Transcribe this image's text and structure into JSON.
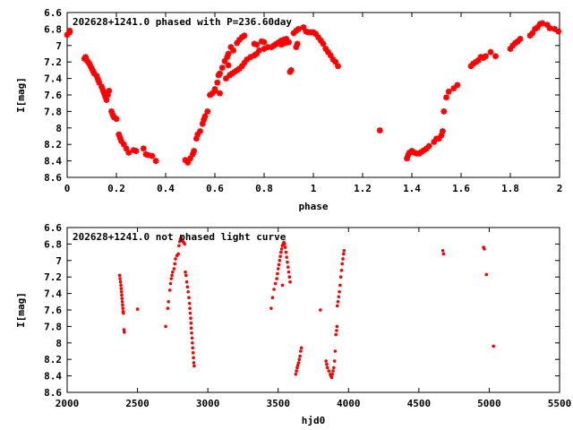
{
  "colors": {
    "points": "#ff0000",
    "axes": "#000000",
    "background": "#ffffff"
  },
  "chart_data": [
    {
      "type": "scatter",
      "title": "202628+1241.0 phased with P=236.60day",
      "xlabel": "phase",
      "ylabel": "I[mag]",
      "xlim": [
        0,
        2
      ],
      "ylim": [
        6.6,
        8.6
      ],
      "y_inverted": true,
      "grid": false,
      "marker": "star",
      "x_ticks": [
        {
          "value": 0,
          "label": "0"
        },
        {
          "value": 0.2,
          "label": "0.2"
        },
        {
          "value": 0.4,
          "label": "0.4"
        },
        {
          "value": 0.6,
          "label": "0.6"
        },
        {
          "value": 0.8,
          "label": "0.8"
        },
        {
          "value": 1,
          "label": "1"
        },
        {
          "value": 1.2,
          "label": "1.2"
        },
        {
          "value": 1.4,
          "label": "1.4"
        },
        {
          "value": 1.6,
          "label": "1.6"
        },
        {
          "value": 1.8,
          "label": "1.8"
        },
        {
          "value": 2,
          "label": "2"
        }
      ],
      "y_ticks": [
        {
          "value": 6.6,
          "label": "6.6"
        },
        {
          "value": 6.8,
          "label": "6.8"
        },
        {
          "value": 7,
          "label": "7"
        },
        {
          "value": 7.2,
          "label": "7.2"
        },
        {
          "value": 7.4,
          "label": "7.4"
        },
        {
          "value": 7.6,
          "label": "7.6"
        },
        {
          "value": 7.8,
          "label": "7.8"
        },
        {
          "value": 8,
          "label": "8"
        },
        {
          "value": 8.2,
          "label": "8.2"
        },
        {
          "value": 8.4,
          "label": "8.4"
        },
        {
          "value": 8.6,
          "label": "8.6"
        }
      ],
      "points": [
        [
          0.0,
          6.87
        ],
        [
          0.01,
          6.82
        ],
        [
          0.01,
          6.84
        ],
        [
          0.07,
          7.16
        ],
        [
          0.075,
          7.14
        ],
        [
          0.08,
          7.18
        ],
        [
          0.085,
          7.2
        ],
        [
          0.09,
          7.22
        ],
        [
          0.095,
          7.25
        ],
        [
          0.1,
          7.28
        ],
        [
          0.105,
          7.31
        ],
        [
          0.11,
          7.34
        ],
        [
          0.12,
          7.37
        ],
        [
          0.125,
          7.41
        ],
        [
          0.13,
          7.45
        ],
        [
          0.14,
          7.5
        ],
        [
          0.145,
          7.54
        ],
        [
          0.15,
          7.58
        ],
        [
          0.155,
          7.62
        ],
        [
          0.16,
          7.66
        ],
        [
          0.165,
          7.6
        ],
        [
          0.17,
          7.55
        ],
        [
          0.18,
          7.8
        ],
        [
          0.185,
          7.84
        ],
        [
          0.19,
          7.87
        ],
        [
          0.2,
          7.89
        ],
        [
          0.21,
          8.08
        ],
        [
          0.215,
          8.12
        ],
        [
          0.22,
          8.16
        ],
        [
          0.23,
          8.2
        ],
        [
          0.24,
          8.25
        ],
        [
          0.25,
          8.3
        ],
        [
          0.27,
          8.27
        ],
        [
          0.28,
          8.28
        ],
        [
          0.31,
          8.25
        ],
        [
          0.32,
          8.32
        ],
        [
          0.33,
          8.33
        ],
        [
          0.345,
          8.34
        ],
        [
          0.36,
          8.4
        ],
        [
          0.48,
          8.39
        ],
        [
          0.49,
          8.42
        ],
        [
          0.5,
          8.37
        ],
        [
          0.51,
          8.32
        ],
        [
          0.515,
          8.28
        ],
        [
          0.525,
          8.13
        ],
        [
          0.53,
          8.08
        ],
        [
          0.54,
          8.04
        ],
        [
          0.55,
          7.95
        ],
        [
          0.555,
          7.9
        ],
        [
          0.56,
          7.86
        ],
        [
          0.57,
          7.8
        ],
        [
          0.58,
          7.6
        ],
        [
          0.59,
          7.58
        ],
        [
          0.6,
          7.53
        ],
        [
          0.61,
          7.45
        ],
        [
          0.615,
          7.36
        ],
        [
          0.62,
          7.34
        ],
        [
          0.63,
          7.27
        ],
        [
          0.64,
          7.19
        ],
        [
          0.65,
          7.14
        ],
        [
          0.655,
          7.1
        ],
        [
          0.66,
          7.36
        ],
        [
          0.67,
          7.34
        ],
        [
          0.68,
          7.32
        ],
        [
          0.69,
          7.3
        ],
        [
          0.7,
          7.28
        ],
        [
          0.71,
          7.25
        ],
        [
          0.72,
          7.21
        ],
        [
          0.73,
          7.17
        ],
        [
          0.745,
          7.14
        ],
        [
          0.76,
          7.12
        ],
        [
          0.77,
          7.1
        ],
        [
          0.78,
          7.06
        ],
        [
          0.8,
          7.04
        ],
        [
          0.83,
          7.02
        ],
        [
          0.84,
          7.0
        ],
        [
          0.85,
          6.98
        ],
        [
          0.86,
          6.96
        ],
        [
          0.87,
          6.94
        ],
        [
          0.88,
          6.93
        ],
        [
          0.89,
          6.92
        ],
        [
          0.905,
          7.32
        ],
        [
          0.91,
          7.3
        ],
        [
          0.92,
          6.85
        ],
        [
          0.93,
          6.82
        ],
        [
          0.94,
          6.8
        ],
        [
          0.96,
          6.78
        ],
        [
          0.97,
          6.83
        ],
        [
          0.98,
          6.84
        ],
        [
          0.99,
          6.84
        ],
        [
          1.0,
          6.84
        ],
        [
          1.01,
          6.86
        ],
        [
          1.02,
          6.9
        ],
        [
          1.03,
          6.94
        ],
        [
          1.04,
          6.98
        ],
        [
          1.05,
          7.04
        ],
        [
          1.06,
          7.08
        ],
        [
          1.07,
          7.12
        ],
        [
          1.08,
          7.17
        ],
        [
          1.09,
          7.2
        ],
        [
          1.1,
          7.25
        ],
        [
          0.6,
          7.55
        ],
        [
          0.62,
          7.58
        ],
        [
          0.645,
          7.4
        ],
        [
          0.655,
          7.24
        ],
        [
          0.665,
          7.02
        ],
        [
          0.675,
          7.06
        ],
        [
          0.69,
          6.97
        ],
        [
          0.7,
          6.93
        ],
        [
          0.71,
          6.9
        ],
        [
          0.72,
          6.88
        ],
        [
          0.76,
          6.98
        ],
        [
          0.77,
          6.99
        ],
        [
          0.79,
          6.95
        ],
        [
          0.8,
          6.96
        ],
        [
          0.815,
          7.02
        ],
        [
          0.87,
          6.99
        ],
        [
          0.885,
          6.97
        ],
        [
          0.9,
          6.96
        ],
        [
          0.93,
          7.02
        ],
        [
          0.935,
          6.98
        ],
        [
          1.27,
          8.03
        ],
        [
          1.38,
          8.37
        ],
        [
          1.385,
          8.33
        ],
        [
          1.39,
          8.3
        ],
        [
          1.4,
          8.28
        ],
        [
          1.41,
          8.3
        ],
        [
          1.42,
          8.31
        ],
        [
          1.43,
          8.31
        ],
        [
          1.44,
          8.29
        ],
        [
          1.45,
          8.27
        ],
        [
          1.46,
          8.25
        ],
        [
          1.47,
          8.22
        ],
        [
          1.49,
          8.17
        ],
        [
          1.5,
          8.13
        ],
        [
          1.51,
          8.13
        ],
        [
          1.52,
          8.09
        ],
        [
          1.525,
          8.04
        ],
        [
          1.53,
          7.8
        ],
        [
          1.54,
          7.63
        ],
        [
          1.55,
          7.56
        ],
        [
          1.57,
          7.52
        ],
        [
          1.585,
          7.48
        ],
        [
          1.64,
          7.25
        ],
        [
          1.65,
          7.22
        ],
        [
          1.66,
          7.2
        ],
        [
          1.67,
          7.18
        ],
        [
          1.68,
          7.14
        ],
        [
          1.69,
          7.15
        ],
        [
          1.7,
          7.13
        ],
        [
          1.72,
          7.08
        ],
        [
          1.74,
          7.13
        ],
        [
          1.8,
          7.04
        ],
        [
          1.81,
          7.0
        ],
        [
          1.82,
          6.97
        ],
        [
          1.83,
          6.95
        ],
        [
          1.84,
          6.92
        ],
        [
          1.88,
          6.88
        ],
        [
          1.89,
          6.85
        ],
        [
          1.9,
          6.8
        ],
        [
          1.91,
          6.78
        ],
        [
          1.92,
          6.74
        ],
        [
          1.93,
          6.73
        ],
        [
          1.95,
          6.75
        ],
        [
          1.96,
          6.79
        ],
        [
          1.98,
          6.8
        ],
        [
          1.995,
          6.83
        ]
      ]
    },
    {
      "type": "scatter",
      "title": "202628+1241.0 not phased light curve",
      "xlabel": "hjd0",
      "ylabel": "I[mag]",
      "xlim": [
        2000,
        5500
      ],
      "ylim": [
        6.6,
        8.6
      ],
      "y_inverted": true,
      "grid": false,
      "marker": "dot",
      "x_ticks": [
        {
          "value": 2000,
          "label": "2000"
        },
        {
          "value": 2500,
          "label": "2500"
        },
        {
          "value": 3000,
          "label": "3000"
        },
        {
          "value": 3500,
          "label": "3500"
        },
        {
          "value": 4000,
          "label": "4000"
        },
        {
          "value": 4500,
          "label": "4500"
        },
        {
          "value": 5000,
          "label": "5000"
        },
        {
          "value": 5500,
          "label": "5500"
        }
      ],
      "y_ticks": [
        {
          "value": 6.6,
          "label": "6.6"
        },
        {
          "value": 6.8,
          "label": "6.8"
        },
        {
          "value": 7,
          "label": "7"
        },
        {
          "value": 7.2,
          "label": "7.2"
        },
        {
          "value": 7.4,
          "label": "7.4"
        },
        {
          "value": 7.6,
          "label": "7.6"
        },
        {
          "value": 7.8,
          "label": "7.8"
        },
        {
          "value": 8,
          "label": "8"
        },
        {
          "value": 8.2,
          "label": "8.2"
        },
        {
          "value": 8.4,
          "label": "8.4"
        },
        {
          "value": 8.6,
          "label": "8.6"
        }
      ],
      "points": [
        [
          2373,
          7.18
        ],
        [
          2376,
          7.22
        ],
        [
          2379,
          7.26
        ],
        [
          2382,
          7.3
        ],
        [
          2384,
          7.34
        ],
        [
          2386,
          7.38
        ],
        [
          2388,
          7.42
        ],
        [
          2390,
          7.46
        ],
        [
          2392,
          7.5
        ],
        [
          2394,
          7.54
        ],
        [
          2396,
          7.58
        ],
        [
          2398,
          7.62
        ],
        [
          2400,
          7.64
        ],
        [
          2404,
          7.84
        ],
        [
          2406,
          7.87
        ],
        [
          2500,
          7.59
        ],
        [
          2700,
          7.8
        ],
        [
          2715,
          7.58
        ],
        [
          2720,
          7.5
        ],
        [
          2730,
          7.36
        ],
        [
          2735,
          7.28
        ],
        [
          2740,
          7.22
        ],
        [
          2745,
          7.18
        ],
        [
          2750,
          7.14
        ],
        [
          2760,
          7.1
        ],
        [
          2765,
          7.04
        ],
        [
          2770,
          6.98
        ],
        [
          2780,
          6.94
        ],
        [
          2790,
          6.92
        ],
        [
          2795,
          6.82
        ],
        [
          2800,
          6.77
        ],
        [
          2805,
          6.74
        ],
        [
          2810,
          6.72
        ],
        [
          2820,
          6.76
        ],
        [
          2828,
          6.78
        ],
        [
          2835,
          6.8
        ],
        [
          2840,
          7.14
        ],
        [
          2845,
          7.18
        ],
        [
          2850,
          7.26
        ],
        [
          2855,
          7.32
        ],
        [
          2860,
          7.38
        ],
        [
          2865,
          7.45
        ],
        [
          2870,
          7.52
        ],
        [
          2872,
          7.58
        ],
        [
          2875,
          7.64
        ],
        [
          2878,
          7.7
        ],
        [
          2880,
          7.76
        ],
        [
          2882,
          7.82
        ],
        [
          2885,
          7.88
        ],
        [
          2888,
          7.94
        ],
        [
          2890,
          8.0
        ],
        [
          2892,
          8.06
        ],
        [
          2895,
          8.12
        ],
        [
          2898,
          8.18
        ],
        [
          2900,
          8.24
        ],
        [
          2903,
          8.28
        ],
        [
          3450,
          7.58
        ],
        [
          3460,
          7.45
        ],
        [
          3470,
          7.35
        ],
        [
          3480,
          7.28
        ],
        [
          3490,
          7.22
        ],
        [
          3495,
          7.16
        ],
        [
          3500,
          7.1
        ],
        [
          3505,
          7.05
        ],
        [
          3510,
          7.0
        ],
        [
          3515,
          6.95
        ],
        [
          3520,
          6.9
        ],
        [
          3525,
          6.86
        ],
        [
          3530,
          6.82
        ],
        [
          3535,
          6.8
        ],
        [
          3540,
          6.78
        ],
        [
          3545,
          6.8
        ],
        [
          3550,
          6.84
        ],
        [
          3555,
          6.9
        ],
        [
          3560,
          6.96
        ],
        [
          3565,
          7.02
        ],
        [
          3570,
          7.08
        ],
        [
          3575,
          7.14
        ],
        [
          3580,
          7.2
        ],
        [
          3585,
          7.26
        ],
        [
          3530,
          7.3
        ],
        [
          3625,
          8.38
        ],
        [
          3630,
          8.34
        ],
        [
          3635,
          8.3
        ],
        [
          3640,
          8.27
        ],
        [
          3645,
          8.24
        ],
        [
          3650,
          8.2
        ],
        [
          3655,
          8.16
        ],
        [
          3660,
          8.1
        ],
        [
          3665,
          8.06
        ],
        [
          3800,
          7.6
        ],
        [
          3840,
          8.22
        ],
        [
          3845,
          8.26
        ],
        [
          3850,
          8.3
        ],
        [
          3860,
          8.34
        ],
        [
          3870,
          8.38
        ],
        [
          3875,
          8.4
        ],
        [
          3880,
          8.42
        ],
        [
          3885,
          8.38
        ],
        [
          3890,
          8.34
        ],
        [
          3895,
          8.3
        ],
        [
          3900,
          8.22
        ],
        [
          3905,
          8.1
        ],
        [
          3910,
          7.9
        ],
        [
          3915,
          7.85
        ],
        [
          3918,
          7.8
        ],
        [
          3920,
          7.55
        ],
        [
          3925,
          7.5
        ],
        [
          3930,
          7.44
        ],
        [
          3935,
          7.38
        ],
        [
          3940,
          7.3
        ],
        [
          3945,
          7.2
        ],
        [
          3950,
          7.12
        ],
        [
          3955,
          7.04
        ],
        [
          3960,
          6.98
        ],
        [
          3965,
          6.92
        ],
        [
          3968,
          6.88
        ],
        [
          4670,
          6.88
        ],
        [
          4675,
          6.92
        ],
        [
          4960,
          6.84
        ],
        [
          4965,
          6.86
        ],
        [
          4980,
          7.17
        ],
        [
          5030,
          8.04
        ]
      ]
    }
  ]
}
